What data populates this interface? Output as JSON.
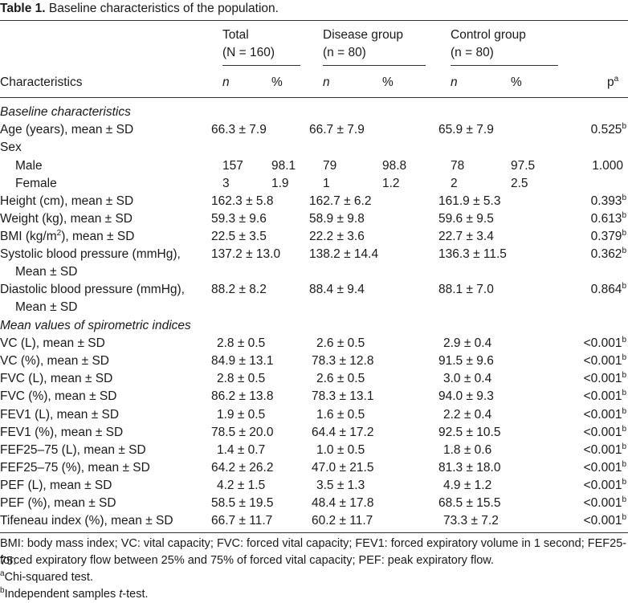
{
  "caption": {
    "label": "Table 1.",
    "text": "Baseline characteristics of the population."
  },
  "groups": {
    "total": {
      "name": "Total",
      "n_paren": "(N = 160)"
    },
    "disease": {
      "name": "Disease group",
      "n_paren": "(n = 80)"
    },
    "control": {
      "name": "Control group",
      "n_paren": "(n = 80)"
    }
  },
  "columns": {
    "characteristics": "Characteristics",
    "n": "n",
    "pct": "%",
    "p": "p",
    "p_sup": "a"
  },
  "sections": {
    "baseline": "Baseline characteristics",
    "spiro": "Mean values of spirometric indices"
  },
  "rows": [
    {
      "name": "Age (years), mean ± SD",
      "t": "66.3 ± 7.9",
      "d": "66.7 ± 7.9",
      "c": "65.9 ± 7.9",
      "p": "0.525",
      "sup": "b"
    },
    {
      "name": "Sex"
    },
    {
      "name": "Male",
      "tn": "157",
      "tp": "98.1",
      "dn": "79",
      "dp": "98.8",
      "cn": "78",
      "cp": "97.5",
      "p": "1.000"
    },
    {
      "name": "Female",
      "tn": "3",
      "tp": "1.9",
      "dn": "1",
      "dp": "1.2",
      "cn": "2",
      "cp": "2.5"
    },
    {
      "name": "Height (cm), mean ± SD",
      "t": "162.3 ± 5.8",
      "d": "162.7 ± 6.2",
      "c": "161.9 ± 5.3",
      "p": "0.393",
      "sup": "b"
    },
    {
      "name": "Weight (kg), mean ± SD",
      "t": "59.3 ± 9.6",
      "d": "58.9 ± 9.8",
      "c": "59.6 ± 9.5",
      "p": "0.613",
      "sup": "b"
    },
    {
      "name_a": "BMI (kg/m",
      "name_sup": "2",
      "name_b": "), mean ± SD",
      "t": "22.5 ± 3.5",
      "d": "22.2 ± 3.6",
      "c": "22.7 ± 3.4",
      "p": "0.379",
      "sup": "b"
    },
    {
      "name": "Systolic blood pressure (mmHg),",
      "name2": "Mean ± SD",
      "t": "137.2 ± 13.0",
      "d": "138.2 ± 14.4",
      "c": "136.3 ± 11.5",
      "p": "0.362",
      "sup": "b"
    },
    {
      "name": "Diastolic blood pressure (mmHg),",
      "name2": "Mean ± SD",
      "t": "88.2 ± 8.2",
      "d": "88.4 ± 9.4",
      "c": "88.1 ± 7.0",
      "p": "0.864",
      "sup": "b"
    },
    {
      "name": "VC (L), mean ± SD",
      "t": "2.8 ± 0.5",
      "d": "2.6 ± 0.5",
      "c": "2.9 ± 0.4",
      "p": "<0.001",
      "sup": "b"
    },
    {
      "name": "VC (%), mean ± SD",
      "t": "84.9 ± 13.1",
      "d": "78.3 ± 12.8",
      "c": "91.5 ± 9.6",
      "p": "<0.001",
      "sup": "b"
    },
    {
      "name": "FVC (L), mean ± SD",
      "t": "2.8 ± 0.5",
      "d": "2.6 ± 0.5",
      "c": "3.0 ± 0.4",
      "p": "<0.001",
      "sup": "b"
    },
    {
      "name": "FVC (%), mean ± SD",
      "t": "86.2 ± 13.8",
      "d": "78.3 ± 13.1",
      "c": "94.0 ± 9.3",
      "p": "<0.001",
      "sup": "b"
    },
    {
      "name": "FEV1 (L), mean ± SD",
      "t": "1.9 ± 0.5",
      "d": "1.6 ± 0.5",
      "c": "2.2 ± 0.4",
      "p": "<0.001",
      "sup": "b"
    },
    {
      "name": "FEV1 (%), mean ± SD",
      "t": "78.5 ± 20.0",
      "d": "64.4 ± 17.2",
      "c": "92.5 ± 10.5",
      "p": "<0.001",
      "sup": "b"
    },
    {
      "name": "FEF25–75 (L), mean ± SD",
      "t": "1.4 ± 0.7",
      "d": "1.0 ± 0.5",
      "c": "1.8 ± 0.6",
      "p": "<0.001",
      "sup": "b"
    },
    {
      "name": "FEF25–75 (%), mean ± SD",
      "t": "64.2 ± 26.2",
      "d": "47.0 ± 21.5",
      "c": "81.3 ± 18.0",
      "p": "<0.001",
      "sup": "b"
    },
    {
      "name": "PEF (L), mean ± SD",
      "t": "4.2 ± 1.5",
      "d": "3.5 ± 1.3",
      "c": "4.9 ± 1.2",
      "p": "<0.001",
      "sup": "b"
    },
    {
      "name": "PEF (%), mean ± SD",
      "t": "58.5 ± 19.5",
      "d": "48.4 ± 17.8",
      "c": "68.5 ± 15.5",
      "p": "<0.001",
      "sup": "b"
    },
    {
      "name": "Tifeneau index (%), mean ± SD",
      "t": "66.7 ± 11.7",
      "d": "60.2 ± 11.7",
      "c": "73.3 ± 7.2",
      "p": "<0.001",
      "sup": "b"
    }
  ],
  "footnotes": {
    "abbr1": "BMI: body mass index; VC: vital capacity; FVC: forced vital capacity; FEV1: forced expiratory volume in 1 second; FEF25-75:",
    "abbr2": "forced expiratory flow between 25% and 75% of forced vital capacity; PEF: peak expiratory flow.",
    "a_mark": "a",
    "a_text": "Chi-squared test.",
    "b_mark": "b",
    "b_text_a": "Independent samples ",
    "b_text_t": "t",
    "b_text_b": "-test."
  }
}
